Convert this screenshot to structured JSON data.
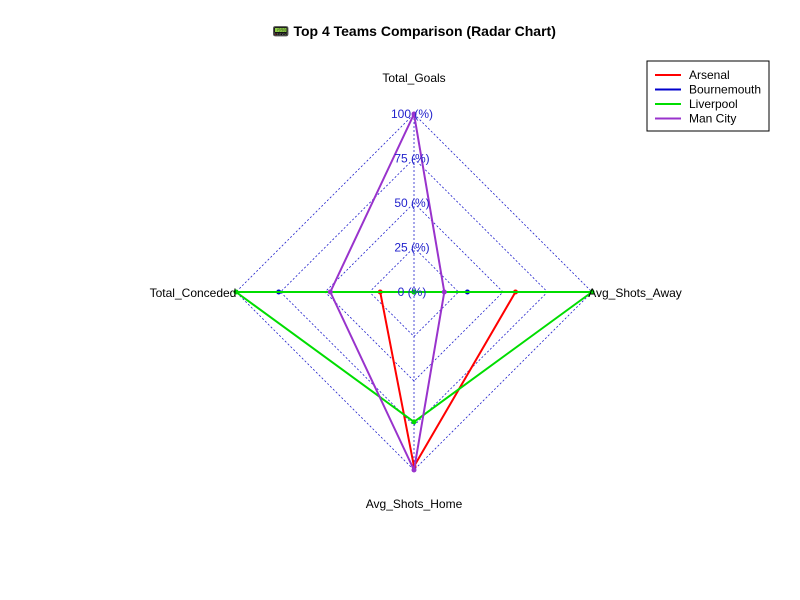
{
  "chart_data": {
    "type": "radar",
    "title": "📟 Top 4 Teams Comparison (Radar Chart)",
    "axes": [
      "Total_Goals",
      "Avg_Shots_Away",
      "Avg_Shots_Home",
      "Total_Conceded"
    ],
    "ticks": [
      "0 (%)",
      "25 (%)",
      "50 (%)",
      "75 (%)",
      "100 (%)"
    ],
    "range": [
      0,
      100
    ],
    "legend_position": "top-right",
    "grid": true,
    "series": [
      {
        "name": "Arsenal",
        "color": "#ff0000",
        "values": [
          0,
          57,
          98,
          19
        ]
      },
      {
        "name": "Bournemouth",
        "color": "#0000cc",
        "values": [
          0,
          30,
          0,
          76
        ]
      },
      {
        "name": "Liverpool",
        "color": "#00dd00",
        "values": [
          0,
          100,
          73,
          100
        ]
      },
      {
        "name": "Man City",
        "color": "#9933cc",
        "values": [
          100,
          17,
          100,
          47
        ]
      }
    ]
  }
}
